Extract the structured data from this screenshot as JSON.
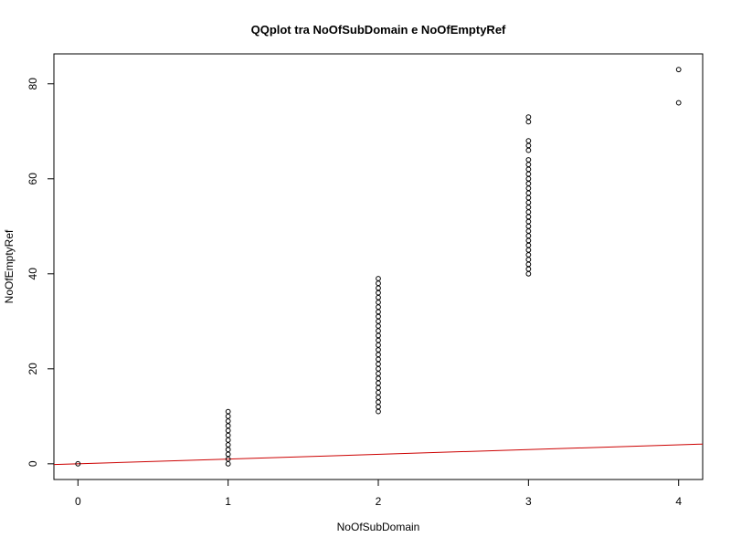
{
  "chart_data": {
    "type": "scatter",
    "title": "QQplot tra NoOfSubDomain e NoOfEmptyRef",
    "xlabel": "NoOfSubDomain",
    "ylabel": "NoOfEmptyRef",
    "xlim": [
      -0.16,
      4.16
    ],
    "ylim": [
      -3.3,
      86.3
    ],
    "xticks": [
      0,
      1,
      2,
      3,
      4
    ],
    "yticks": [
      0,
      20,
      40,
      60,
      80
    ],
    "grid": false,
    "points": [
      {
        "x": 0,
        "y": 0
      },
      {
        "x": 1,
        "y": 0
      },
      {
        "x": 1,
        "y": 1
      },
      {
        "x": 1,
        "y": 2
      },
      {
        "x": 1,
        "y": 3
      },
      {
        "x": 1,
        "y": 4
      },
      {
        "x": 1,
        "y": 5
      },
      {
        "x": 1,
        "y": 6
      },
      {
        "x": 1,
        "y": 7
      },
      {
        "x": 1,
        "y": 8
      },
      {
        "x": 1,
        "y": 9
      },
      {
        "x": 1,
        "y": 10
      },
      {
        "x": 1,
        "y": 11
      },
      {
        "x": 2,
        "y": 11
      },
      {
        "x": 2,
        "y": 12
      },
      {
        "x": 2,
        "y": 13
      },
      {
        "x": 2,
        "y": 14
      },
      {
        "x": 2,
        "y": 15
      },
      {
        "x": 2,
        "y": 16
      },
      {
        "x": 2,
        "y": 17
      },
      {
        "x": 2,
        "y": 18
      },
      {
        "x": 2,
        "y": 19
      },
      {
        "x": 2,
        "y": 20
      },
      {
        "x": 2,
        "y": 21
      },
      {
        "x": 2,
        "y": 22
      },
      {
        "x": 2,
        "y": 23
      },
      {
        "x": 2,
        "y": 24
      },
      {
        "x": 2,
        "y": 25
      },
      {
        "x": 2,
        "y": 26
      },
      {
        "x": 2,
        "y": 27
      },
      {
        "x": 2,
        "y": 28
      },
      {
        "x": 2,
        "y": 29
      },
      {
        "x": 2,
        "y": 30
      },
      {
        "x": 2,
        "y": 31
      },
      {
        "x": 2,
        "y": 32
      },
      {
        "x": 2,
        "y": 33
      },
      {
        "x": 2,
        "y": 34
      },
      {
        "x": 2,
        "y": 35
      },
      {
        "x": 2,
        "y": 36
      },
      {
        "x": 2,
        "y": 37
      },
      {
        "x": 2,
        "y": 38
      },
      {
        "x": 2,
        "y": 39
      },
      {
        "x": 3,
        "y": 40
      },
      {
        "x": 3,
        "y": 41
      },
      {
        "x": 3,
        "y": 42
      },
      {
        "x": 3,
        "y": 43
      },
      {
        "x": 3,
        "y": 44
      },
      {
        "x": 3,
        "y": 45
      },
      {
        "x": 3,
        "y": 46
      },
      {
        "x": 3,
        "y": 47
      },
      {
        "x": 3,
        "y": 48
      },
      {
        "x": 3,
        "y": 49
      },
      {
        "x": 3,
        "y": 50
      },
      {
        "x": 3,
        "y": 51
      },
      {
        "x": 3,
        "y": 52
      },
      {
        "x": 3,
        "y": 53
      },
      {
        "x": 3,
        "y": 54
      },
      {
        "x": 3,
        "y": 55
      },
      {
        "x": 3,
        "y": 56
      },
      {
        "x": 3,
        "y": 57
      },
      {
        "x": 3,
        "y": 58
      },
      {
        "x": 3,
        "y": 59
      },
      {
        "x": 3,
        "y": 60
      },
      {
        "x": 3,
        "y": 61
      },
      {
        "x": 3,
        "y": 62
      },
      {
        "x": 3,
        "y": 63
      },
      {
        "x": 3,
        "y": 64
      },
      {
        "x": 3,
        "y": 66
      },
      {
        "x": 3,
        "y": 67
      },
      {
        "x": 3,
        "y": 68
      },
      {
        "x": 3,
        "y": 72
      },
      {
        "x": 3,
        "y": 73
      },
      {
        "x": 4,
        "y": 76
      },
      {
        "x": 4,
        "y": 83
      }
    ],
    "reference_line": {
      "intercept": 0,
      "slope": 1,
      "color": "#cc0000"
    },
    "point_style": {
      "shape": "open-circle",
      "color": "#000000"
    }
  }
}
